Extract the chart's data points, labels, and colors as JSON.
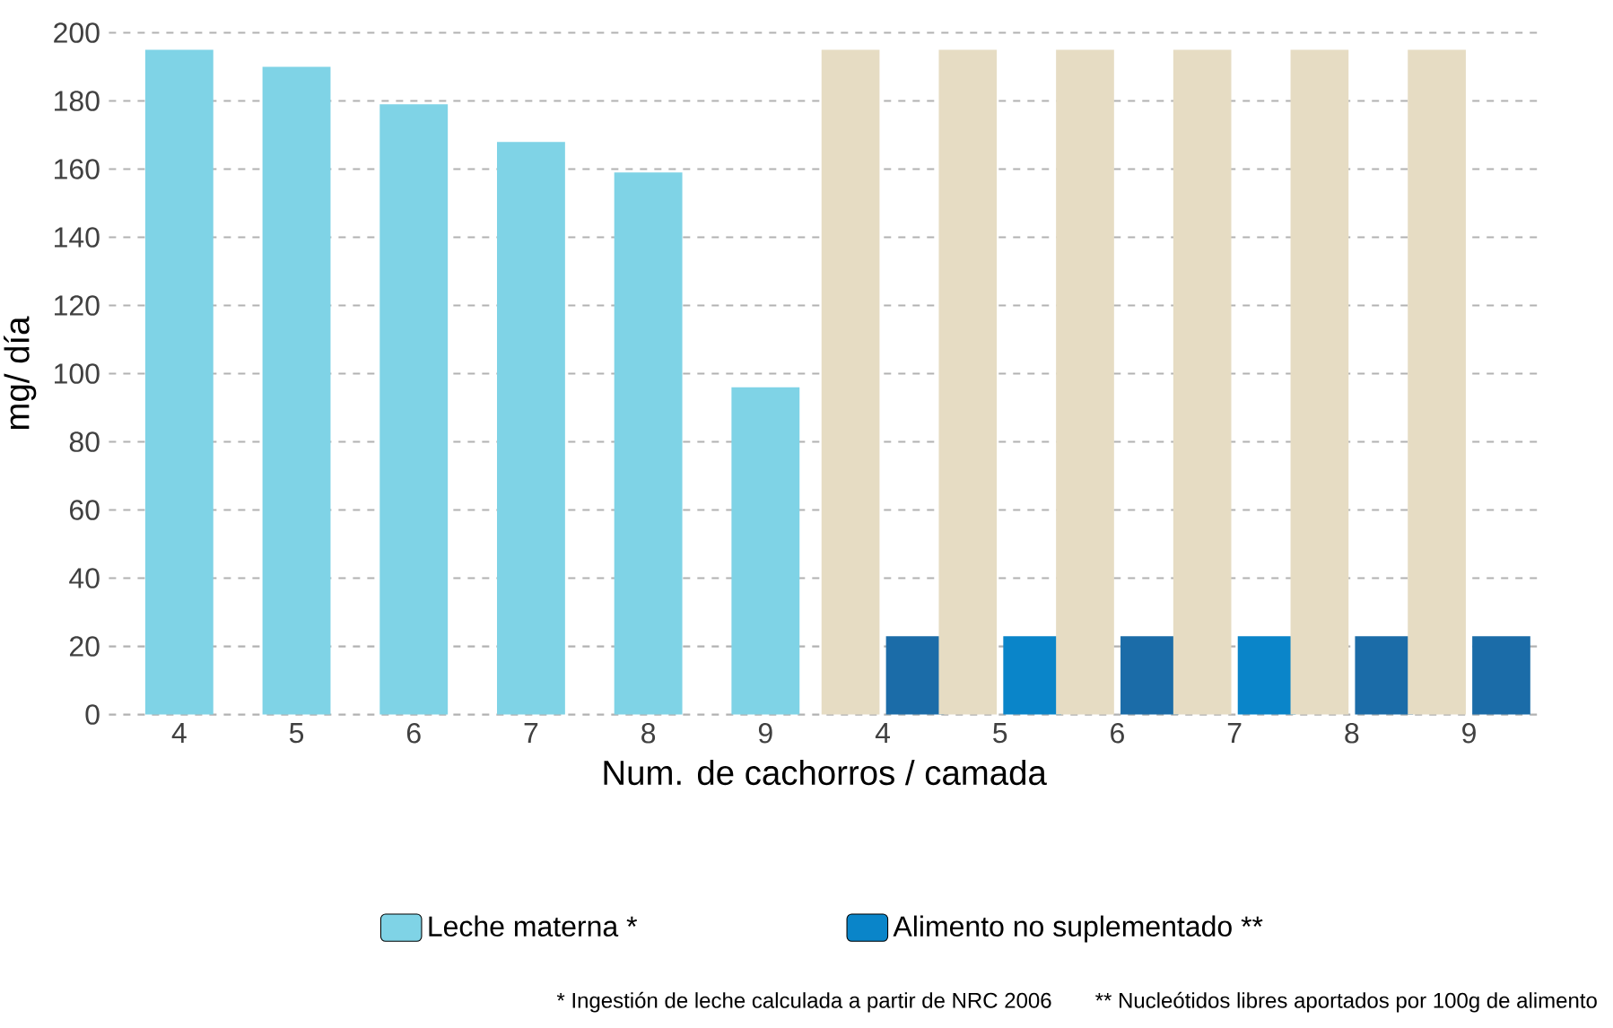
{
  "chart_data": {
    "type": "bar",
    "xlabel": "Num. de cachorros / camada",
    "ylabel": "mg/ día",
    "categories": [
      "4",
      "5",
      "6",
      "7",
      "8",
      "9",
      "4",
      "5",
      "6",
      "7",
      "8",
      "9"
    ],
    "series": [
      {
        "name": "Leche materna *",
        "color": "#7fd3e6",
        "values": [
          195,
          190,
          179,
          168,
          159,
          96,
          null,
          null,
          null,
          null,
          null,
          null
        ]
      },
      {
        "color": "#e6dcc3",
        "values": [
          null,
          null,
          null,
          null,
          null,
          null,
          195,
          195,
          195,
          195,
          195,
          195
        ]
      },
      {
        "name": "Alimento no suplementado **",
        "color": "#0a85c9",
        "colors": [
          null,
          null,
          null,
          null,
          null,
          null,
          "#1b6ca8",
          "#0a85c9",
          "#1b6ca8",
          "#0a85c9",
          "#1b6ca8",
          "#1b6ca8"
        ],
        "values": [
          null,
          null,
          null,
          null,
          null,
          null,
          23,
          23,
          23,
          23,
          23,
          23
        ]
      }
    ],
    "ylim": [
      0,
      200
    ],
    "yticks": [
      0,
      20,
      40,
      60,
      80,
      100,
      120,
      140,
      160,
      180,
      200
    ],
    "grid": "y",
    "legend": "bottom",
    "annotations": [
      "* Ingestión de leche calculada a partir de NRC 2006",
      "** Nucleótidos libres aportados por 100g de alimento"
    ]
  }
}
